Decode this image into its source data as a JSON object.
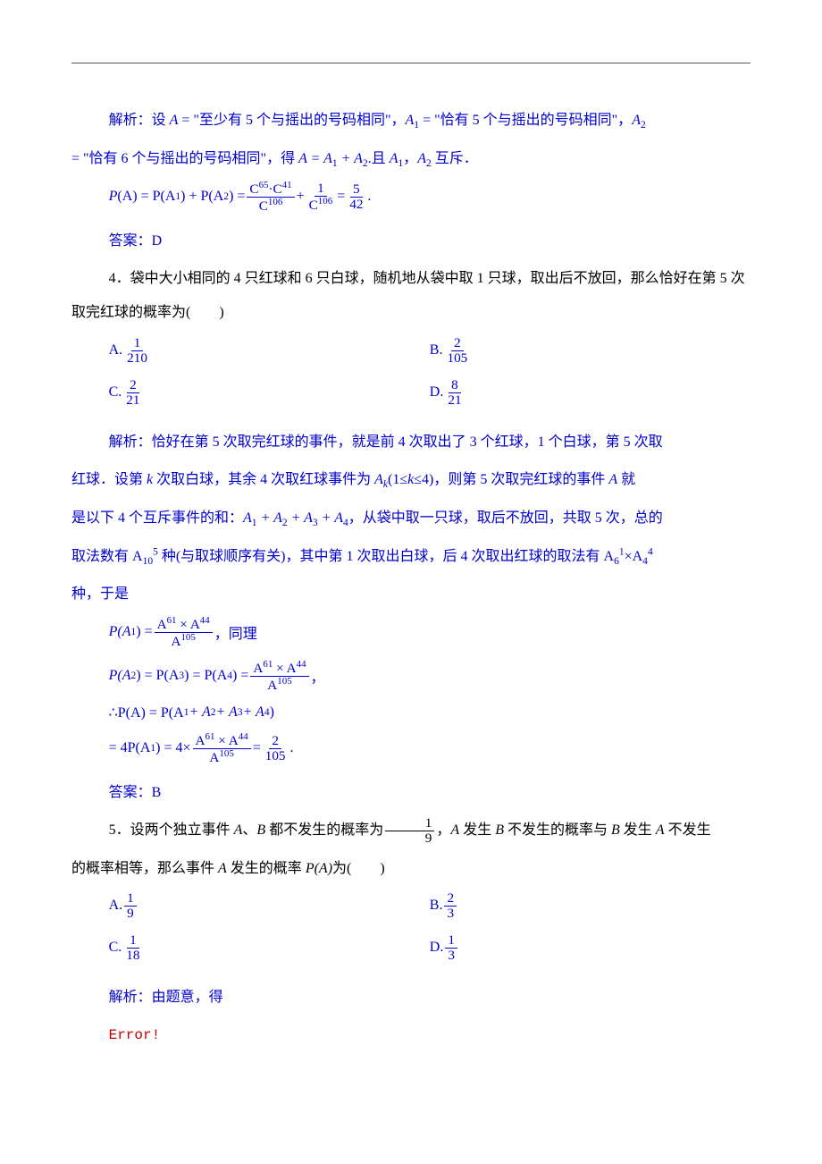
{
  "colors": {
    "blue": "#0000cc",
    "red": "#cc0000",
    "text": "#000000",
    "rule": "#555555",
    "bg": "#ffffff"
  },
  "fonts": {
    "body_family": "SimSun",
    "math_family": "Times New Roman",
    "body_size_pt": 12,
    "line_height": 2.4
  },
  "p1": {
    "pre": "解析：设 ",
    "A": "A",
    "eq": " = ",
    "q1": "\"至少有 5 个与摇出的号码相同\"",
    "c1": "，",
    "A1": "A",
    "A1sub": "1",
    "q2": "\"恰有 5 个与摇出的号码相同\"",
    "c2": "，",
    "A2": "A",
    "A2sub": "2"
  },
  "p1b": {
    "pre2": " = \"恰有 6 个与摇出的号码相同\"，得 ",
    "expr": "A = A",
    "s1": "1",
    "plus": " + A",
    "s2": "2",
    "dot": ".",
    "post": "且 ",
    "Aa": "A",
    "sa": "1",
    "comma": "，",
    "Ab": "A",
    "sb": "2",
    "tail": " 互斥．"
  },
  "eq1": {
    "lhs1": "P",
    "lhs2": "(A) = P(A",
    "lhs2s": "1",
    "lhs3": ") + P(A",
    "lhs3s": "2",
    "lhs4": ") = ",
    "f1num": "C",
    "f1numsup": "65",
    "f1mid": "·C",
    "f1numsup2": "41",
    "f1den": "C",
    "f1densup": "106",
    "plus": " + ",
    "f2num": "1",
    "f2den": "C",
    "f2densup": "106",
    "eq": " = ",
    "f3num": "5",
    "f3den": "42",
    "dot": "."
  },
  "ans1": "答案：D",
  "q4": {
    "text": "4．袋中大小相同的 4 只红球和 6 只白球，随机地从袋中取 1 只球，取出后不放回，那么恰好在第 5 次取完红球的概率为(　　)",
    "options": [
      {
        "label": "A.",
        "num": "1",
        "den": "210"
      },
      {
        "label": "B.",
        "num": "2",
        "den": "105"
      },
      {
        "label": "C.",
        "num": "2",
        "den": "21"
      },
      {
        "label": "D.",
        "num": "8",
        "den": "21"
      }
    ]
  },
  "expl4a": "解析：恰好在第 5 次取完红球的事件，就是前 4 次取出了 3 个红球，1 个白球，第 5 次取",
  "expl4b_pre": "红球．设第 ",
  "expl4b_k": "k",
  "expl4b_mid": " 次取白球，其余 4 次取红球事件为 ",
  "expl4b_Ak": "A",
  "expl4b_Aksub": "k",
  "expl4b_range": "(1≤",
  "expl4b_kk": "k",
  "expl4b_range2": "≤4)，则第 5 次取完红球的事件 ",
  "expl4b_A": "A",
  "expl4b_tail": " 就",
  "expl4c_pre": "是以下 4 个互斥事件的和：",
  "expl4c_expr": "A₁ + A₂ + A₃ + A₄",
  "expl4c_A": "A",
  "expl4c_s1": "1",
  "expl4c_p": " + ",
  "expl4c_s2": "2",
  "expl4c_s3": "3",
  "expl4c_s4": "4",
  "expl4c_tail": "，从袋中取一只球，取后不放回，共取 5 次，总的",
  "expl4d_pre": "取法数有 A",
  "expl4d_sub": "10",
  "expl4d_sup": "5",
  "expl4d_mid": " 种(与取球顺序有关)，其中第 1 次取出白球，后 4 次取出红球的取法有 A",
  "expl4d_sub2": "6",
  "expl4d_sup2": "1",
  "expl4d_x": "×A",
  "expl4d_sub3": "4",
  "expl4d_sup3": "4",
  "expl4e": "种，于是",
  "eq4a": {
    "lhs": "P(A",
    "s": "1",
    "r": ") = ",
    "num": "A",
    "nsup": "61",
    "x": " × A",
    "nsup2": "44",
    "den": "A",
    "dsup": "105",
    "tail": "，同理"
  },
  "eq4b": {
    "lhs": "P(A",
    "s2": "2",
    "m1": ") = P(A",
    "s3": "3",
    "m2": ") = P(A",
    "s4": "4",
    "r": ") = ",
    "num": "A",
    "nsup": "61",
    "x": " × A",
    "nsup2": "44",
    "den": "A",
    "dsup": "105",
    "tail": "，"
  },
  "eq4c": {
    "pre": "∴P(A) = P(A",
    "s1": "1",
    "p": " + A",
    "s2": "2",
    "s3": "3",
    "s4": "4",
    "r": ")"
  },
  "eq4d": {
    "pre": " = 4P(A",
    "s1": "1",
    "m": ") = 4×",
    "num": "A",
    "nsup": "61",
    "x": " × A",
    "nsup2": "44",
    "den": "A",
    "dsup": "105",
    "eq": " = ",
    "rn": "2",
    "rd": "105",
    "dot": "."
  },
  "ans4": "答案：B",
  "q5": {
    "pre": "5．设两个独立事件 ",
    "A": "A",
    "B": "B",
    "mid": "、",
    "mid2": " 都不发生的概率为",
    "fn": "1",
    "fd": "9",
    "c": "，",
    "mid3": " 发生 ",
    "mid4": " 不发生的概率与 ",
    "mid5": " 发生 ",
    "mid6": " 不发生",
    "line2": "的概率相等，那么事件 ",
    "A2": "A",
    "mid7": " 发生的概率 ",
    "PA": "P(A)",
    "tail": "为(　　)",
    "options": [
      {
        "label": "A.",
        "num": "1",
        "den": "9"
      },
      {
        "label": "B.",
        "num": "2",
        "den": "3"
      },
      {
        "label": "C.",
        "num": "1",
        "den": "18"
      },
      {
        "label": "D.",
        "num": "1",
        "den": "3"
      }
    ]
  },
  "expl5": "解析：由题意，得",
  "error": "Error!"
}
